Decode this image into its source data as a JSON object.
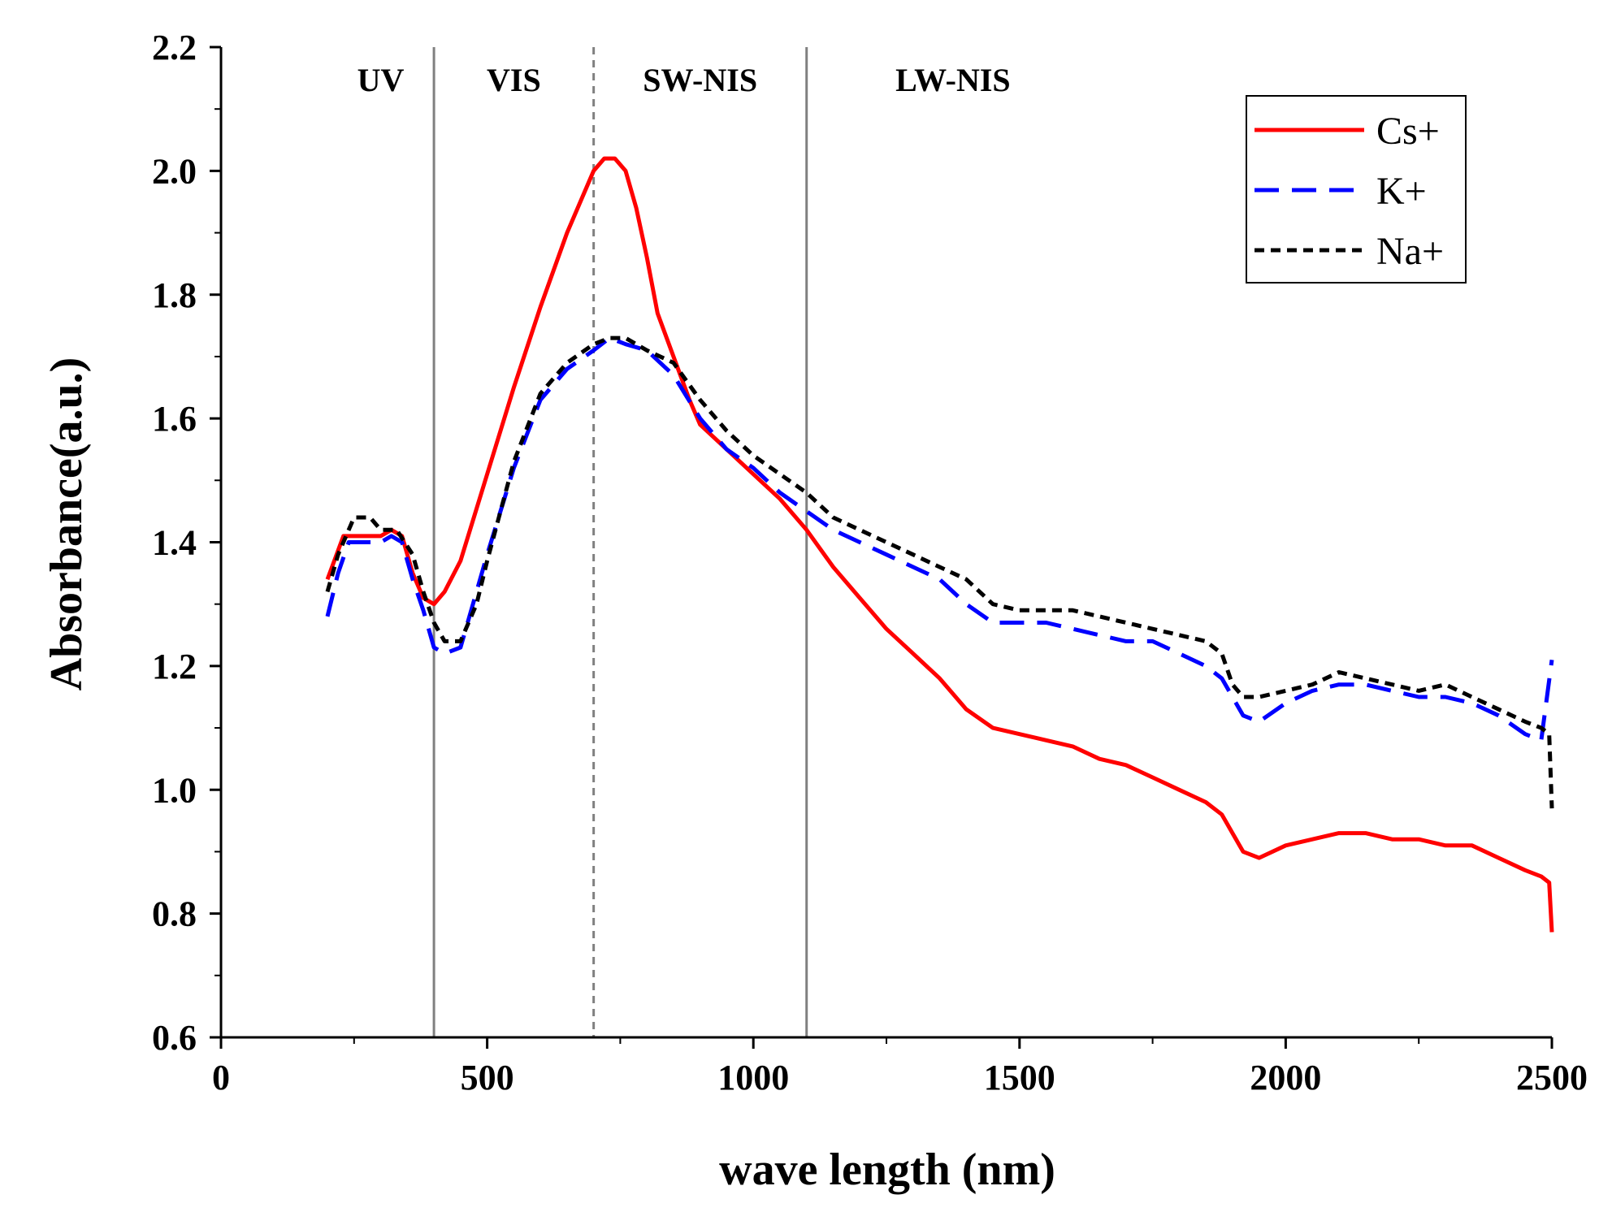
{
  "chart_data": {
    "type": "line",
    "title": "",
    "xlabel": "wave length (nm)",
    "ylabel": "Absorbance(a.u.)",
    "xlim": [
      0,
      2500
    ],
    "ylim": [
      0.6,
      2.2
    ],
    "xticks": [
      0,
      500,
      1000,
      1500,
      2000,
      2500
    ],
    "xtick_labels": [
      "0",
      "500",
      "1000",
      "1500",
      "2000",
      "2500"
    ],
    "yticks": [
      0.6,
      0.8,
      1.0,
      1.2,
      1.4,
      1.6,
      1.8,
      2.0,
      2.2
    ],
    "ytick_labels": [
      "0.6",
      "0.8",
      "1.0",
      "1.2",
      "1.4",
      "1.6",
      "1.8",
      "2.0",
      "2.2"
    ],
    "grid": false,
    "legend_position": "top-right",
    "regions": [
      {
        "label": "UV",
        "from": 200,
        "to": 400
      },
      {
        "label": "VIS",
        "from": 400,
        "to": 700
      },
      {
        "label": "SW-NIS",
        "from": 700,
        "to": 1100
      },
      {
        "label": "LW-NIS",
        "from": 1100,
        "to": 1650
      }
    ],
    "dividers": [
      {
        "x": 400,
        "style": "solid"
      },
      {
        "x": 700,
        "style": "dotted"
      },
      {
        "x": 1100,
        "style": "solid"
      }
    ],
    "series": [
      {
        "name": "Cs+",
        "color": "#ff0000",
        "dash": "solid",
        "x": [
          200,
          230,
          250,
          280,
          300,
          320,
          340,
          360,
          380,
          400,
          420,
          450,
          500,
          550,
          600,
          650,
          700,
          720,
          740,
          760,
          780,
          800,
          820,
          850,
          880,
          900,
          950,
          1000,
          1050,
          1100,
          1150,
          1200,
          1250,
          1300,
          1350,
          1400,
          1450,
          1500,
          1550,
          1600,
          1650,
          1700,
          1750,
          1800,
          1850,
          1880,
          1900,
          1920,
          1950,
          2000,
          2050,
          2100,
          2150,
          2200,
          2250,
          2300,
          2350,
          2400,
          2450,
          2480,
          2495,
          2500
        ],
        "y": [
          1.34,
          1.41,
          1.41,
          1.41,
          1.41,
          1.42,
          1.41,
          1.35,
          1.31,
          1.3,
          1.32,
          1.37,
          1.51,
          1.65,
          1.78,
          1.9,
          2.0,
          2.02,
          2.02,
          2.0,
          1.94,
          1.86,
          1.77,
          1.7,
          1.63,
          1.59,
          1.55,
          1.51,
          1.47,
          1.42,
          1.36,
          1.31,
          1.26,
          1.22,
          1.18,
          1.13,
          1.1,
          1.09,
          1.08,
          1.07,
          1.05,
          1.04,
          1.02,
          1.0,
          0.98,
          0.96,
          0.93,
          0.9,
          0.89,
          0.91,
          0.92,
          0.93,
          0.93,
          0.92,
          0.92,
          0.91,
          0.91,
          0.89,
          0.87,
          0.86,
          0.85,
          0.77
        ]
      },
      {
        "name": "K+",
        "color": "#0000ff",
        "dash": "long-dash",
        "x": [
          200,
          220,
          240,
          270,
          300,
          320,
          340,
          360,
          380,
          400,
          420,
          450,
          480,
          500,
          550,
          600,
          650,
          700,
          730,
          760,
          800,
          850,
          900,
          950,
          1000,
          1050,
          1100,
          1150,
          1200,
          1250,
          1300,
          1350,
          1400,
          1450,
          1500,
          1550,
          1600,
          1650,
          1700,
          1750,
          1800,
          1850,
          1880,
          1900,
          1920,
          1950,
          2000,
          2050,
          2100,
          2150,
          2200,
          2250,
          2300,
          2350,
          2400,
          2450,
          2480,
          2500
        ],
        "y": [
          1.28,
          1.35,
          1.4,
          1.4,
          1.4,
          1.41,
          1.4,
          1.34,
          1.29,
          1.23,
          1.22,
          1.23,
          1.32,
          1.38,
          1.52,
          1.63,
          1.68,
          1.71,
          1.73,
          1.72,
          1.71,
          1.67,
          1.6,
          1.55,
          1.52,
          1.48,
          1.45,
          1.42,
          1.4,
          1.38,
          1.36,
          1.34,
          1.3,
          1.27,
          1.27,
          1.27,
          1.26,
          1.25,
          1.24,
          1.24,
          1.22,
          1.2,
          1.18,
          1.15,
          1.12,
          1.11,
          1.14,
          1.16,
          1.17,
          1.17,
          1.16,
          1.15,
          1.15,
          1.14,
          1.12,
          1.09,
          1.08,
          1.21
        ]
      },
      {
        "name": "Na+",
        "color": "#000000",
        "dash": "short-dash",
        "x": [
          200,
          220,
          250,
          280,
          300,
          330,
          360,
          380,
          400,
          420,
          450,
          480,
          500,
          550,
          600,
          650,
          700,
          730,
          760,
          800,
          850,
          900,
          950,
          1000,
          1050,
          1100,
          1150,
          1200,
          1250,
          1300,
          1350,
          1400,
          1450,
          1500,
          1550,
          1600,
          1650,
          1700,
          1750,
          1800,
          1850,
          1880,
          1900,
          1920,
          1950,
          2000,
          2050,
          2100,
          2150,
          2200,
          2250,
          2300,
          2350,
          2400,
          2450,
          2480,
          2495,
          2500
        ],
        "y": [
          1.32,
          1.38,
          1.44,
          1.44,
          1.42,
          1.42,
          1.38,
          1.32,
          1.27,
          1.24,
          1.24,
          1.3,
          1.37,
          1.53,
          1.64,
          1.69,
          1.72,
          1.73,
          1.73,
          1.71,
          1.69,
          1.63,
          1.58,
          1.54,
          1.51,
          1.48,
          1.44,
          1.42,
          1.4,
          1.38,
          1.36,
          1.34,
          1.3,
          1.29,
          1.29,
          1.29,
          1.28,
          1.27,
          1.26,
          1.25,
          1.24,
          1.22,
          1.17,
          1.15,
          1.15,
          1.16,
          1.17,
          1.19,
          1.18,
          1.17,
          1.16,
          1.17,
          1.15,
          1.13,
          1.11,
          1.1,
          1.09,
          0.97
        ]
      }
    ]
  }
}
